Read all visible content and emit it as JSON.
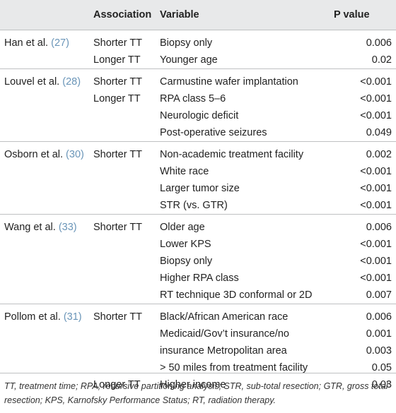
{
  "table": {
    "headers": {
      "study": "",
      "association": "Association",
      "variable": "Variable",
      "p_value": "P value"
    },
    "groups": [
      {
        "study": "Han et al.",
        "ref": "(27)",
        "rows": [
          {
            "association": "Shorter TT",
            "variable": "Biopsy only",
            "p": "0.006"
          },
          {
            "association": "Longer TT",
            "variable": "Younger age",
            "p": "0.02"
          }
        ]
      },
      {
        "study": "Louvel et al.",
        "ref": "(28)",
        "rows": [
          {
            "association": "Shorter TT",
            "variable": "Carmustine wafer implantation",
            "p": "<0.001"
          },
          {
            "association": "Longer TT",
            "variable": "RPA class 5–6",
            "p": "<0.001"
          },
          {
            "association": "",
            "variable": "Neurologic deficit",
            "p": "<0.001"
          },
          {
            "association": "",
            "variable": "Post-operative seizures",
            "p": "0.049"
          }
        ]
      },
      {
        "study": "Osborn et al.",
        "ref": "(30)",
        "rows": [
          {
            "association": "Shorter TT",
            "variable": "Non-academic treatment facility",
            "p": "0.002"
          },
          {
            "association": "",
            "variable": "White race",
            "p": "<0.001"
          },
          {
            "association": "",
            "variable": "Larger tumor size",
            "p": "<0.001"
          },
          {
            "association": "",
            "variable": "STR (vs. GTR)",
            "p": "<0.001"
          }
        ]
      },
      {
        "study": "Wang et al.",
        "ref": "(33)",
        "rows": [
          {
            "association": "Shorter TT",
            "variable": "Older age",
            "p": "0.006"
          },
          {
            "association": "",
            "variable": "Lower KPS",
            "p": "<0.001"
          },
          {
            "association": "",
            "variable": "Biopsy only",
            "p": "<0.001"
          },
          {
            "association": "",
            "variable": "Higher RPA class",
            "p": "<0.001"
          },
          {
            "association": "",
            "variable": "RT technique 3D conformal or 2D",
            "p": "0.007"
          }
        ]
      },
      {
        "study": "Pollom et al.",
        "ref": "(31)",
        "rows": [
          {
            "association": "Shorter TT",
            "variable": "Black/African American race",
            "p": "0.006"
          },
          {
            "association": "",
            "variable": "Medicaid/Gov’t insurance/no",
            "p": "0.001"
          },
          {
            "association": "",
            "variable": "insurance Metropolitan area",
            "p": "0.003"
          },
          {
            "association": "",
            "variable": "> 50 miles from treatment facility",
            "p": "0.05"
          },
          {
            "association": "Longer TT",
            "variable": "Higher income",
            "p": "0.03"
          }
        ]
      }
    ]
  },
  "footnote": "TT, treatment time; RPA, recursive partitioning analysis; STR, sub-total resection; GTR, gross total resection; KPS, Karnofsky Performance Status; RT, radiation therapy.",
  "colors": {
    "header_bg": "#e8e9ea",
    "ref_link": "#6a95b8",
    "rule": "#bfc0c2",
    "text": "#222222"
  }
}
